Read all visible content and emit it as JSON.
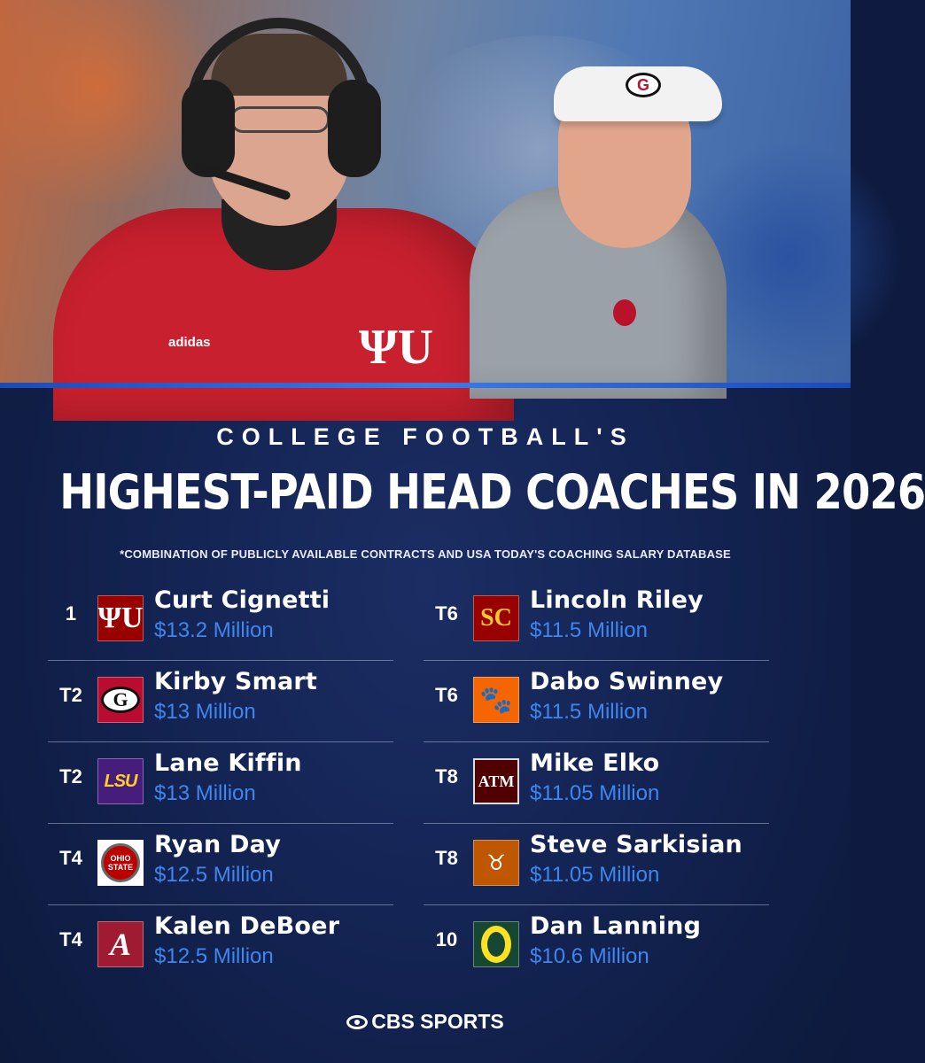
{
  "header": {
    "kicker": "COLLEGE FOOTBALL'S",
    "title": "HIGHEST-PAID HEAD COACHES IN 2026",
    "footnote": "*COMBINATION OF PUBLICLY AVAILABLE CONTRACTS AND USA TODAY'S COACHING SALARY DATABASE"
  },
  "hero": {
    "coach_left_logos": [
      "adidas",
      "ΨU"
    ],
    "coach_right_visor_logo": "G"
  },
  "coaches_left": [
    {
      "rank": "1",
      "name": "Curt Cignetti",
      "salary": "$13.2 Million",
      "logo_text": "ΨU",
      "logo": "indiana-logo"
    },
    {
      "rank": "T2",
      "name": "Kirby Smart",
      "salary": "$13 Million",
      "logo_text": "G",
      "logo": "georgia-logo"
    },
    {
      "rank": "T2",
      "name": "Lane Kiffin",
      "salary": "$13 Million",
      "logo_text": "LSU",
      "logo": "lsu-logo"
    },
    {
      "rank": "T4",
      "name": "Ryan Day",
      "salary": "$12.5 Million",
      "logo_text": "OHIO STATE",
      "logo": "ohio-state-logo"
    },
    {
      "rank": "T4",
      "name": "Kalen DeBoer",
      "salary": "$12.5 Million",
      "logo_text": "A",
      "logo": "alabama-logo"
    }
  ],
  "coaches_right": [
    {
      "rank": "T6",
      "name": "Lincoln Riley",
      "salary": "$11.5 Million",
      "logo_text": "SC",
      "logo": "usc-logo"
    },
    {
      "rank": "T6",
      "name": "Dabo Swinney",
      "salary": "$11.5 Million",
      "logo_text": "🐾",
      "logo": "clemson-logo"
    },
    {
      "rank": "T8",
      "name": "Mike Elko",
      "salary": "$11.05 Million",
      "logo_text": "ATM",
      "logo": "texas-am-logo"
    },
    {
      "rank": "T8",
      "name": "Steve Sarkisian",
      "salary": "$11.05 Million",
      "logo_text": "♉",
      "logo": "texas-logo"
    },
    {
      "rank": "10",
      "name": "Dan Lanning",
      "salary": "$10.6 Million",
      "logo_text": "",
      "logo": "oregon-logo"
    }
  ],
  "branding": {
    "label": "CBS SPORTS"
  },
  "colors": {
    "background": "#142454",
    "accent_blue": "#3e86f0",
    "divider": "#3d7be8"
  }
}
